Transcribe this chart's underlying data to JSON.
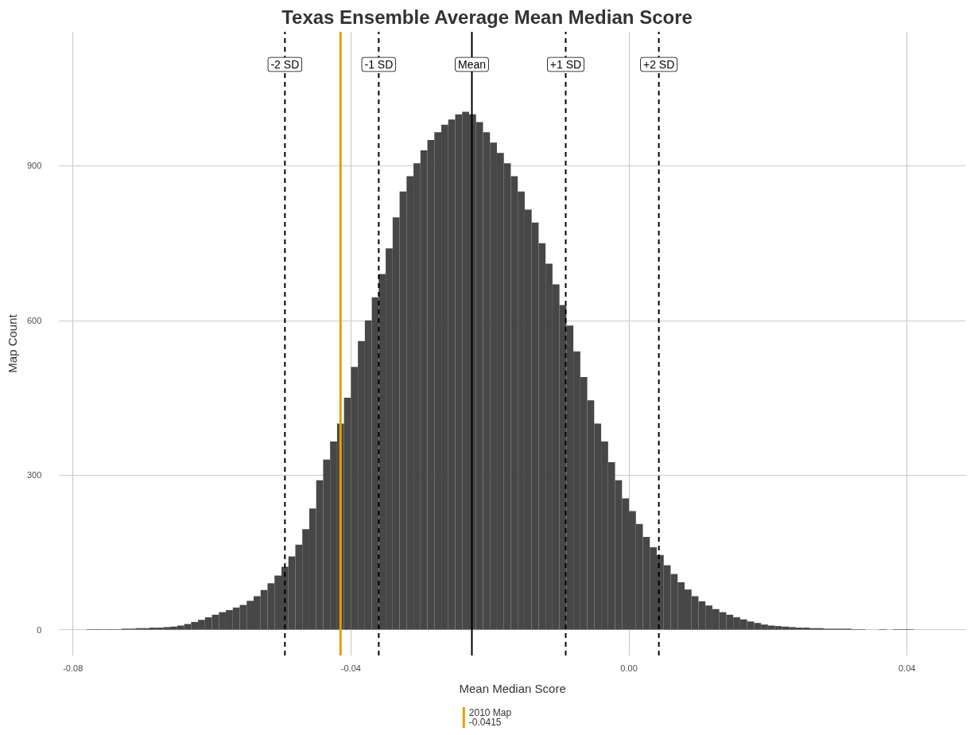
{
  "chart_data": {
    "type": "histogram",
    "title": "Texas Ensemble Average Mean Median Score",
    "xlabel": "Mean Median Score",
    "ylabel": "Map Count",
    "color": "#474747",
    "bins": [
      -0.078,
      -0.077,
      -0.076,
      -0.075,
      -0.074,
      -0.073,
      -0.072,
      -0.071,
      -0.07,
      -0.069,
      -0.068,
      -0.067,
      -0.066,
      -0.065,
      -0.064,
      -0.063,
      -0.062,
      -0.061,
      -0.06,
      -0.059,
      -0.058,
      -0.057,
      -0.056,
      -0.055,
      -0.054,
      -0.053,
      -0.052,
      -0.051,
      -0.05,
      -0.049,
      -0.048,
      -0.047,
      -0.046,
      -0.045,
      -0.044,
      -0.043,
      -0.042,
      -0.041,
      -0.04,
      -0.039,
      -0.038,
      -0.037,
      -0.036,
      -0.035,
      -0.034,
      -0.033,
      -0.032,
      -0.031,
      -0.03,
      -0.029,
      -0.028,
      -0.027,
      -0.026,
      -0.025,
      -0.024,
      -0.023,
      -0.022,
      -0.021,
      -0.02,
      -0.019,
      -0.018,
      -0.017,
      -0.016,
      -0.015,
      -0.014,
      -0.013,
      -0.012,
      -0.011,
      -0.01,
      -0.009,
      -0.008,
      -0.007,
      -0.006,
      -0.005,
      -0.004,
      -0.003,
      -0.002,
      -0.001,
      0,
      0.001,
      0.002,
      0.003,
      0.004,
      0.005,
      0.006,
      0.007,
      0.008,
      0.009,
      0.01,
      0.011,
      0.012,
      0.013,
      0.014,
      0.015,
      0.016,
      0.017,
      0.018,
      0.019,
      0.02,
      0.021,
      0.022,
      0.023,
      0.024,
      0.025,
      0.026,
      0.027,
      0.028,
      0.029,
      0.03,
      0.031,
      0.032,
      0.033,
      0.034,
      0.035,
      0.036,
      0.037,
      0.038,
      0.039,
      0.04,
      0.041,
      0.042
    ],
    "values": [
      1,
      1,
      1,
      1,
      1,
      2,
      2,
      3,
      3,
      4,
      4,
      5,
      6,
      8,
      11,
      15,
      19,
      24,
      29,
      34,
      38,
      43,
      48,
      56,
      65,
      77,
      90,
      105,
      122,
      142,
      165,
      195,
      235,
      290,
      330,
      365,
      400,
      450,
      510,
      560,
      600,
      645,
      690,
      740,
      800,
      850,
      880,
      905,
      930,
      950,
      965,
      980,
      990,
      1000,
      1005,
      1000,
      985,
      965,
      945,
      925,
      905,
      880,
      850,
      815,
      790,
      750,
      710,
      670,
      630,
      590,
      540,
      490,
      445,
      400,
      365,
      325,
      290,
      255,
      230,
      205,
      180,
      160,
      145,
      125,
      108,
      92,
      78,
      65,
      55,
      47,
      40,
      34,
      29,
      24,
      20,
      16,
      13,
      10,
      8,
      7,
      6,
      5,
      4,
      4,
      3,
      3,
      2,
      2,
      2,
      2,
      1,
      1,
      0,
      0,
      1,
      0,
      1,
      1,
      1,
      0
    ],
    "xlim": [
      -0.082,
      0.0485
    ],
    "xticks": [
      -0.08,
      -0.04,
      {
        "value": 0,
        "label": "0.00"
      },
      0.04
    ],
    "ylim": [
      -50,
      1160
    ],
    "yticks": [
      0,
      300,
      600,
      900
    ],
    "grid": true,
    "legend": "bottom",
    "ref_lines": [
      {
        "axis": "x",
        "value": -0.0495,
        "label": "-2 SD",
        "line_style": "dashed"
      },
      {
        "axis": "x",
        "value": -0.036,
        "label": "-1 SD",
        "line_style": "dashed"
      },
      {
        "axis": "x",
        "value": -0.0226,
        "label": "Mean",
        "line_style": "solid"
      },
      {
        "axis": "x",
        "value": -0.0091,
        "label": "+1 SD",
        "line_style": "dashed"
      },
      {
        "axis": "x",
        "value": 0.0043,
        "label": "+2 SD",
        "line_style": "dashed"
      },
      {
        "axis": "x",
        "value": -0.0415,
        "label": "2010 Map\n-0.0415",
        "line_style": "solid",
        "color": "#e69f00"
      }
    ]
  }
}
